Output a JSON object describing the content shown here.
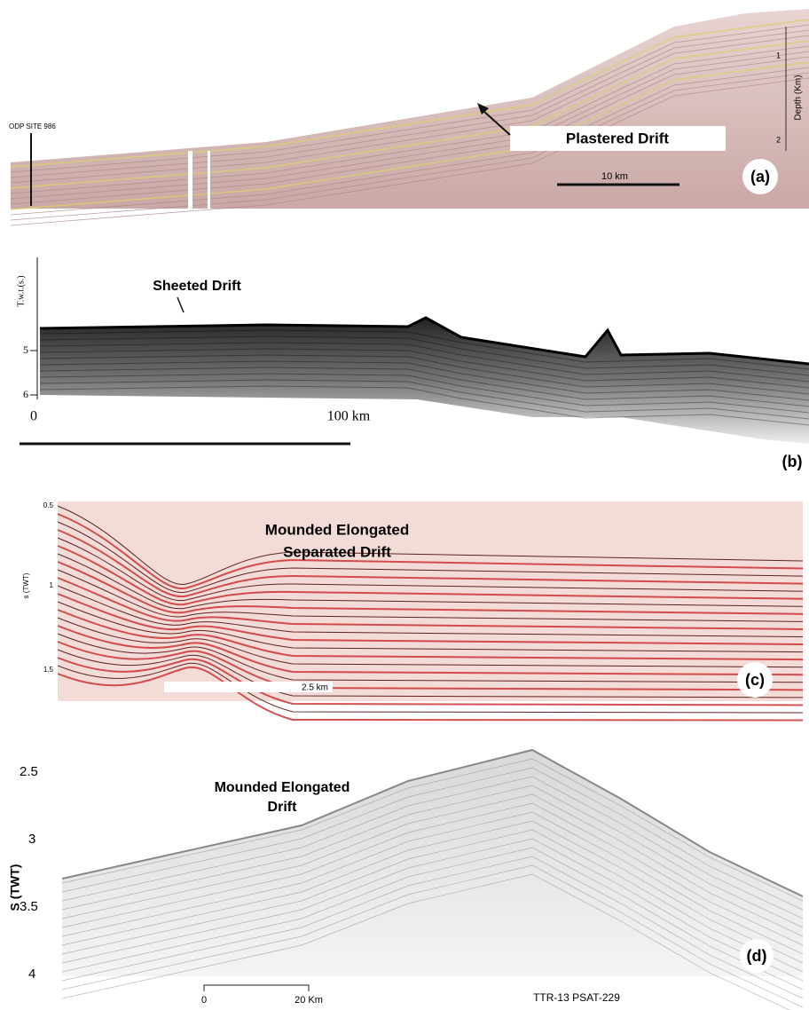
{
  "panels": [
    {
      "label": "(a)",
      "site": "ODP SITE 986",
      "title": "Plastered Drift",
      "scale": "10 km",
      "axis_label": "Depth (Km)",
      "ticks": [
        "1",
        "2"
      ]
    },
    {
      "label": "(b)",
      "title": "Sheeted Drift",
      "axis_label": "T.w.t.(s.)",
      "ticks": [
        "5",
        "6"
      ],
      "scale_start": "0",
      "scale": "100 km"
    },
    {
      "label": "(c)",
      "title_lines": [
        "Mounded Elongated",
        "Separated Drift"
      ],
      "axis_label": "s (TWT)",
      "ticks": [
        "0.5",
        "1",
        "1.5"
      ],
      "scale": "2.5 km"
    },
    {
      "label": "(d)",
      "title_lines": [
        "Mounded Elongated",
        "Drift"
      ],
      "axis_label": "S (TWT)",
      "ticks": [
        "2.5",
        "3",
        "3.5",
        "4"
      ],
      "scale_start": "0",
      "scale": "20 Km",
      "line_id": "TTR-13 PSAT-229"
    }
  ]
}
